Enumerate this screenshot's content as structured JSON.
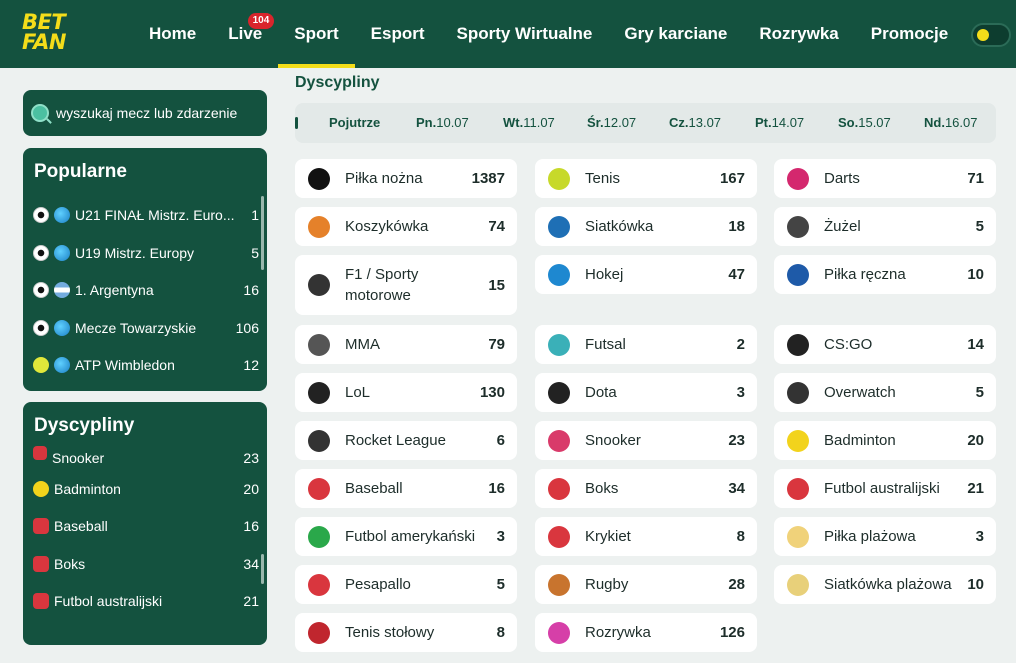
{
  "brand": {
    "logo_line1": "BET",
    "logo_line2": "FAN"
  },
  "nav": [
    {
      "label": "Home"
    },
    {
      "label": "Live",
      "badge": "104"
    },
    {
      "label": "Sport",
      "active": true
    },
    {
      "label": "Esport"
    },
    {
      "label": "Sporty Wirtualne"
    },
    {
      "label": "Gry karciane"
    },
    {
      "label": "Rozrywka"
    },
    {
      "label": "Promocje"
    }
  ],
  "search": {
    "placeholder": "wyszukaj mecz lub zdarzenie"
  },
  "popular": {
    "title": "Popularne",
    "items": [
      {
        "label": "U21 FINAŁ Mistrz. Euro...",
        "count": "1"
      },
      {
        "label": "U19 Mistrz. Europy",
        "count": "5"
      },
      {
        "label": "1. Argentyna",
        "count": "16"
      },
      {
        "label": "Mecze Towarzyskie",
        "count": "106"
      },
      {
        "label": "ATP Wimbledon",
        "count": "12"
      }
    ]
  },
  "sidebar_disciplines": {
    "title": "Dyscypliny",
    "items": [
      {
        "label": "Snooker",
        "count": "23"
      },
      {
        "label": "Badminton",
        "count": "20"
      },
      {
        "label": "Baseball",
        "count": "16"
      },
      {
        "label": "Boks",
        "count": "34"
      },
      {
        "label": "Futbol australijski",
        "count": "21"
      }
    ]
  },
  "main": {
    "title": "Dyscypliny",
    "dates": [
      {
        "label": "Pojutrze",
        "date": ""
      },
      {
        "label": "Pn.",
        "date": "10.07"
      },
      {
        "label": "Wt.",
        "date": "11.07"
      },
      {
        "label": "Śr.",
        "date": "12.07"
      },
      {
        "label": "Cz.",
        "date": "13.07"
      },
      {
        "label": "Pt.",
        "date": "14.07"
      },
      {
        "label": "So.",
        "date": "15.07"
      },
      {
        "label": "Nd.",
        "date": "16.07"
      }
    ],
    "sports": [
      [
        {
          "label": "Piłka nożna",
          "count": "1387",
          "icon": "soccer-ball-icon",
          "color": "#111111"
        },
        {
          "label": "Koszykówka",
          "count": "74",
          "icon": "basketball-icon",
          "color": "#e5812a"
        },
        {
          "label": "F1 / Sporty motorowe",
          "count": "15",
          "icon": "motorsport-icon",
          "color": "#333333"
        },
        {
          "label": "MMA",
          "count": "79",
          "icon": "mma-icon",
          "color": "#555555"
        },
        {
          "label": "LoL",
          "count": "130",
          "icon": "lol-icon",
          "color": "#222222"
        },
        {
          "label": "Rocket League",
          "count": "6",
          "icon": "rocket-league-icon",
          "color": "#333333"
        },
        {
          "label": "Baseball",
          "count": "16",
          "icon": "baseball-icon",
          "color": "#d9363e"
        },
        {
          "label": "Futbol amerykański",
          "count": "3",
          "icon": "american-football-icon",
          "color": "#2aa84a"
        },
        {
          "label": "Pesapallo",
          "count": "5",
          "icon": "pesapallo-icon",
          "color": "#d9363e"
        },
        {
          "label": "Tenis stołowy",
          "count": "8",
          "icon": "table-tennis-icon",
          "color": "#c0262e"
        }
      ],
      [
        {
          "label": "Tenis",
          "count": "167",
          "icon": "tennis-ball-icon",
          "color": "#c7d92a"
        },
        {
          "label": "Siatkówka",
          "count": "18",
          "icon": "volleyball-icon",
          "color": "#1e6fb5"
        },
        {
          "label": "Hokej",
          "count": "47",
          "icon": "hockey-icon",
          "color": "#1e88d0"
        },
        {
          "label": "Futsal",
          "count": "2",
          "icon": "futsal-icon",
          "color": "#3ab0b8"
        },
        {
          "label": "Dota",
          "count": "3",
          "icon": "dota-icon",
          "color": "#222222"
        },
        {
          "label": "Snooker",
          "count": "23",
          "icon": "snooker-icon",
          "color": "#d93a6a"
        },
        {
          "label": "Boks",
          "count": "34",
          "icon": "boxing-icon",
          "color": "#d9363e"
        },
        {
          "label": "Krykiet",
          "count": "8",
          "icon": "cricket-icon",
          "color": "#d9363e"
        },
        {
          "label": "Rugby",
          "count": "28",
          "icon": "rugby-icon",
          "color": "#c8742e"
        },
        {
          "label": "Rozrywka",
          "count": "126",
          "icon": "entertainment-icon",
          "color": "#d63fa8"
        }
      ],
      [
        {
          "label": "Darts",
          "count": "71",
          "icon": "darts-icon",
          "color": "#d4286e"
        },
        {
          "label": "Żużel",
          "count": "5",
          "icon": "speedway-icon",
          "color": "#444444"
        },
        {
          "label": "Piłka ręczna",
          "count": "10",
          "icon": "handball-icon",
          "color": "#1e5aa8"
        },
        {
          "label": "CS:GO",
          "count": "14",
          "icon": "csgo-icon",
          "color": "#222222"
        },
        {
          "label": "Overwatch",
          "count": "5",
          "icon": "overwatch-icon",
          "color": "#333333"
        },
        {
          "label": "Badminton",
          "count": "20",
          "icon": "badminton-icon",
          "color": "#f2d31c"
        },
        {
          "label": "Futbol australijski",
          "count": "21",
          "icon": "australian-football-icon",
          "color": "#d9363e"
        },
        {
          "label": "Piłka plażowa",
          "count": "3",
          "icon": "beach-ball-icon",
          "color": "#f0d27a"
        },
        {
          "label": "Siatkówka plażowa",
          "count": "10",
          "icon": "beach-volleyball-icon",
          "color": "#e8d07a"
        }
      ]
    ]
  },
  "colors": {
    "header": "#14523f",
    "accent": "#f4dd1a",
    "badge": "#d9252c",
    "page_bg": "#edf1f0"
  }
}
